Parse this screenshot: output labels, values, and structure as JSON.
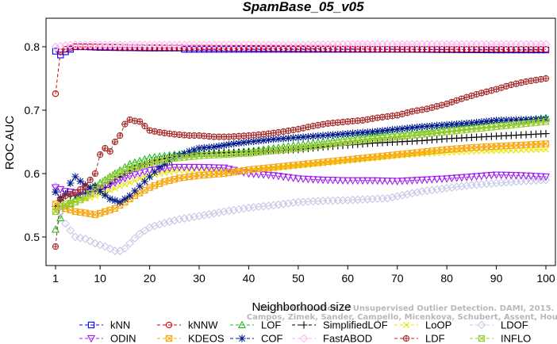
{
  "chart_data": {
    "type": "line",
    "title": "SpamBase_05_v05",
    "xlabel": "Neighborhood size",
    "ylabel": "ROC AUC",
    "xlim": [
      1,
      100
    ],
    "ylim": [
      0.455,
      0.845
    ],
    "x_ticks": [
      1,
      10,
      20,
      30,
      40,
      50,
      60,
      70,
      80,
      90,
      100
    ],
    "y_ticks": [
      0.5,
      0.6,
      0.7,
      0.8
    ],
    "grid": false,
    "legend_position": "bottom",
    "watermark": [
      "Campos, Zimek, Sander, Campello, Micenkova, Schubert, Assent, Houle",
      "On the Evaluation of Unsupervised Outlier Detection. DAMI, 2015."
    ],
    "series": [
      {
        "name": "kNN",
        "color": "#0000ff",
        "marker": "square",
        "dash": "4,3",
        "points": [
          [
            1,
            0.793
          ],
          [
            2,
            0.787
          ],
          [
            3,
            0.792
          ],
          [
            4,
            0.796
          ],
          [
            5,
            0.8
          ],
          [
            7,
            0.8
          ],
          [
            10,
            0.799
          ],
          [
            20,
            0.798
          ],
          [
            26,
            0.798
          ],
          [
            27,
            0.796
          ],
          [
            35,
            0.796
          ],
          [
            50,
            0.796
          ],
          [
            70,
            0.796
          ],
          [
            90,
            0.795
          ],
          [
            100,
            0.795
          ]
        ]
      },
      {
        "name": "kNNW",
        "color": "#d40000",
        "marker": "circle",
        "dash": "4,3",
        "points": [
          [
            1,
            0.726
          ],
          [
            2,
            0.792
          ],
          [
            3,
            0.796
          ],
          [
            5,
            0.8
          ],
          [
            8,
            0.8
          ],
          [
            15,
            0.799
          ],
          [
            30,
            0.798
          ],
          [
            50,
            0.797
          ],
          [
            70,
            0.796
          ],
          [
            90,
            0.796
          ],
          [
            100,
            0.796
          ]
        ]
      },
      {
        "name": "LOF",
        "color": "#1fbf1f",
        "marker": "triangle-up",
        "dash": "4,3",
        "points": [
          [
            1,
            0.512
          ],
          [
            2,
            0.53
          ],
          [
            3,
            0.545
          ],
          [
            5,
            0.56
          ],
          [
            7,
            0.572
          ],
          [
            10,
            0.585
          ],
          [
            13,
            0.6
          ],
          [
            16,
            0.615
          ],
          [
            20,
            0.625
          ],
          [
            25,
            0.63
          ],
          [
            30,
            0.632
          ],
          [
            35,
            0.632
          ],
          [
            40,
            0.635
          ],
          [
            45,
            0.64
          ],
          [
            50,
            0.645
          ],
          [
            55,
            0.65
          ],
          [
            60,
            0.655
          ],
          [
            65,
            0.66
          ],
          [
            70,
            0.662
          ],
          [
            75,
            0.665
          ],
          [
            80,
            0.67
          ],
          [
            85,
            0.675
          ],
          [
            90,
            0.679
          ],
          [
            95,
            0.683
          ],
          [
            100,
            0.688
          ]
        ]
      },
      {
        "name": "SimplifiedLOF",
        "color": "#000000",
        "marker": "plus",
        "dash": "4,3",
        "points": [
          [
            1,
            0.548
          ],
          [
            2,
            0.558
          ],
          [
            3,
            0.565
          ],
          [
            5,
            0.565
          ],
          [
            7,
            0.57
          ],
          [
            9,
            0.573
          ],
          [
            11,
            0.578
          ],
          [
            13,
            0.59
          ],
          [
            15,
            0.6
          ],
          [
            18,
            0.612
          ],
          [
            21,
            0.62
          ],
          [
            25,
            0.628
          ],
          [
            30,
            0.632
          ],
          [
            35,
            0.633
          ],
          [
            40,
            0.634
          ],
          [
            45,
            0.636
          ],
          [
            50,
            0.638
          ],
          [
            55,
            0.642
          ],
          [
            60,
            0.645
          ],
          [
            65,
            0.648
          ],
          [
            70,
            0.65
          ],
          [
            75,
            0.652
          ],
          [
            80,
            0.655
          ],
          [
            85,
            0.657
          ],
          [
            90,
            0.659
          ],
          [
            95,
            0.661
          ],
          [
            100,
            0.663
          ]
        ]
      },
      {
        "name": "LoOP",
        "color": "#e6e600",
        "marker": "x",
        "dash": "4,3",
        "points": [
          [
            1,
            0.542
          ],
          [
            3,
            0.552
          ],
          [
            5,
            0.556
          ],
          [
            8,
            0.562
          ],
          [
            11,
            0.57
          ],
          [
            14,
            0.58
          ],
          [
            18,
            0.592
          ],
          [
            22,
            0.6
          ],
          [
            26,
            0.605
          ],
          [
            30,
            0.605
          ],
          [
            35,
            0.604
          ],
          [
            40,
            0.605
          ],
          [
            45,
            0.608
          ],
          [
            50,
            0.612
          ],
          [
            55,
            0.616
          ],
          [
            60,
            0.62
          ],
          [
            65,
            0.624
          ],
          [
            70,
            0.628
          ],
          [
            75,
            0.631
          ],
          [
            80,
            0.633
          ],
          [
            85,
            0.635
          ],
          [
            90,
            0.636
          ],
          [
            95,
            0.637
          ],
          [
            100,
            0.638
          ]
        ]
      },
      {
        "name": "LDOF",
        "color": "#c8c8e8",
        "marker": "diamond",
        "dash": "4,3",
        "points": [
          [
            1,
            0.58
          ],
          [
            2,
            0.54
          ],
          [
            3,
            0.521
          ],
          [
            5,
            0.5
          ],
          [
            7,
            0.497
          ],
          [
            9,
            0.49
          ],
          [
            11,
            0.485
          ],
          [
            13,
            0.478
          ],
          [
            14,
            0.478
          ],
          [
            15,
            0.482
          ],
          [
            16,
            0.49
          ],
          [
            17,
            0.498
          ],
          [
            18,
            0.505
          ],
          [
            20,
            0.515
          ],
          [
            23,
            0.522
          ],
          [
            26,
            0.528
          ],
          [
            30,
            0.533
          ],
          [
            35,
            0.54
          ],
          [
            40,
            0.546
          ],
          [
            45,
            0.55
          ],
          [
            50,
            0.555
          ],
          [
            55,
            0.557
          ],
          [
            60,
            0.558
          ],
          [
            65,
            0.56
          ],
          [
            68,
            0.561
          ],
          [
            75,
            0.572
          ],
          [
            80,
            0.577
          ],
          [
            85,
            0.582
          ],
          [
            90,
            0.585
          ],
          [
            95,
            0.588
          ],
          [
            100,
            0.59
          ]
        ]
      },
      {
        "name": "ODIN",
        "color": "#a020f0",
        "marker": "triangle-down",
        "dash": "4,3",
        "points": [
          [
            1,
            0.578
          ],
          [
            3,
            0.572
          ],
          [
            5,
            0.57
          ],
          [
            8,
            0.571
          ],
          [
            12,
            0.582
          ],
          [
            16,
            0.596
          ],
          [
            20,
            0.605
          ],
          [
            25,
            0.61
          ],
          [
            30,
            0.61
          ],
          [
            35,
            0.609
          ],
          [
            40,
            0.6
          ],
          [
            45,
            0.597
          ],
          [
            50,
            0.592
          ],
          [
            55,
            0.59
          ],
          [
            60,
            0.589
          ],
          [
            65,
            0.589
          ],
          [
            70,
            0.588
          ],
          [
            75,
            0.59
          ],
          [
            80,
            0.592
          ],
          [
            85,
            0.595
          ],
          [
            90,
            0.598
          ],
          [
            95,
            0.597
          ],
          [
            100,
            0.595
          ]
        ]
      },
      {
        "name": "KDEOS",
        "color": "#f7a60f",
        "marker": "square-x",
        "dash": "4,3",
        "points": [
          [
            1,
            0.552
          ],
          [
            3,
            0.545
          ],
          [
            5,
            0.54
          ],
          [
            7,
            0.538
          ],
          [
            9,
            0.535
          ],
          [
            11,
            0.54
          ],
          [
            13,
            0.545
          ],
          [
            15,
            0.555
          ],
          [
            17,
            0.565
          ],
          [
            20,
            0.578
          ],
          [
            23,
            0.587
          ],
          [
            26,
            0.593
          ],
          [
            30,
            0.597
          ],
          [
            35,
            0.6
          ],
          [
            40,
            0.606
          ],
          [
            45,
            0.61
          ],
          [
            50,
            0.614
          ],
          [
            55,
            0.618
          ],
          [
            60,
            0.622
          ],
          [
            65,
            0.626
          ],
          [
            70,
            0.63
          ],
          [
            75,
            0.634
          ],
          [
            80,
            0.638
          ],
          [
            85,
            0.641
          ],
          [
            90,
            0.643
          ],
          [
            95,
            0.645
          ],
          [
            100,
            0.647
          ]
        ]
      },
      {
        "name": "COF",
        "color": "#001a8c",
        "marker": "star",
        "dash": "4,3",
        "points": [
          [
            1,
            0.571
          ],
          [
            2,
            0.562
          ],
          [
            3,
            0.568
          ],
          [
            4,
            0.585
          ],
          [
            5,
            0.595
          ],
          [
            6,
            0.588
          ],
          [
            7,
            0.582
          ],
          [
            8,
            0.578
          ],
          [
            9,
            0.58
          ],
          [
            10,
            0.572
          ],
          [
            12,
            0.56
          ],
          [
            14,
            0.555
          ],
          [
            16,
            0.565
          ],
          [
            18,
            0.58
          ],
          [
            20,
            0.595
          ],
          [
            22,
            0.61
          ],
          [
            25,
            0.625
          ],
          [
            28,
            0.635
          ],
          [
            30,
            0.64
          ],
          [
            33,
            0.642
          ],
          [
            36,
            0.646
          ],
          [
            40,
            0.65
          ],
          [
            45,
            0.654
          ],
          [
            50,
            0.657
          ],
          [
            55,
            0.66
          ],
          [
            60,
            0.663
          ],
          [
            65,
            0.666
          ],
          [
            70,
            0.67
          ],
          [
            75,
            0.674
          ],
          [
            80,
            0.677
          ],
          [
            85,
            0.68
          ],
          [
            90,
            0.684
          ],
          [
            95,
            0.685
          ],
          [
            100,
            0.686
          ]
        ]
      },
      {
        "name": "FastABOD",
        "color": "#ffb6f0",
        "marker": "diamond",
        "dash": "4,3",
        "points": [
          [
            1,
            0.8
          ],
          [
            3,
            0.802
          ],
          [
            5,
            0.803
          ],
          [
            10,
            0.803
          ],
          [
            20,
            0.803
          ],
          [
            30,
            0.803
          ],
          [
            40,
            0.803
          ],
          [
            50,
            0.803
          ],
          [
            60,
            0.804
          ],
          [
            70,
            0.804
          ],
          [
            80,
            0.804
          ],
          [
            90,
            0.804
          ],
          [
            100,
            0.804
          ]
        ]
      },
      {
        "name": "LDF",
        "color": "#a52a2a",
        "marker": "circle-plus",
        "dash": "4,3",
        "points": [
          [
            1,
            0.485
          ],
          [
            2,
            0.56
          ],
          [
            3,
            0.565
          ],
          [
            5,
            0.57
          ],
          [
            7,
            0.58
          ],
          [
            9,
            0.6
          ],
          [
            10,
            0.63
          ],
          [
            11,
            0.64
          ],
          [
            12,
            0.635
          ],
          [
            13,
            0.65
          ],
          [
            14,
            0.66
          ],
          [
            15,
            0.678
          ],
          [
            16,
            0.685
          ],
          [
            17,
            0.683
          ],
          [
            18,
            0.682
          ],
          [
            19,
            0.675
          ],
          [
            20,
            0.668
          ],
          [
            22,
            0.665
          ],
          [
            25,
            0.662
          ],
          [
            28,
            0.66
          ],
          [
            30,
            0.66
          ],
          [
            33,
            0.658
          ],
          [
            36,
            0.658
          ],
          [
            40,
            0.66
          ],
          [
            43,
            0.662
          ],
          [
            46,
            0.665
          ],
          [
            50,
            0.67
          ],
          [
            53,
            0.675
          ],
          [
            56,
            0.679
          ],
          [
            60,
            0.682
          ],
          [
            63,
            0.684
          ],
          [
            66,
            0.688
          ],
          [
            70,
            0.692
          ],
          [
            73,
            0.698
          ],
          [
            76,
            0.702
          ],
          [
            80,
            0.71
          ],
          [
            83,
            0.718
          ],
          [
            86,
            0.725
          ],
          [
            90,
            0.733
          ],
          [
            93,
            0.74
          ],
          [
            96,
            0.745
          ],
          [
            100,
            0.75
          ]
        ]
      },
      {
        "name": "INFLO",
        "color": "#99cc33",
        "marker": "square-x",
        "dash": "4,3",
        "points": [
          [
            1,
            0.54
          ],
          [
            2,
            0.548
          ],
          [
            3,
            0.552
          ],
          [
            5,
            0.555
          ],
          [
            7,
            0.562
          ],
          [
            9,
            0.575
          ],
          [
            11,
            0.588
          ],
          [
            13,
            0.598
          ],
          [
            15,
            0.605
          ],
          [
            18,
            0.612
          ],
          [
            21,
            0.618
          ],
          [
            25,
            0.624
          ],
          [
            30,
            0.628
          ],
          [
            35,
            0.63
          ],
          [
            40,
            0.632
          ],
          [
            45,
            0.636
          ],
          [
            50,
            0.64
          ],
          [
            55,
            0.645
          ],
          [
            60,
            0.65
          ],
          [
            65,
            0.654
          ],
          [
            70,
            0.658
          ],
          [
            75,
            0.662
          ],
          [
            80,
            0.666
          ],
          [
            85,
            0.67
          ],
          [
            90,
            0.674
          ],
          [
            95,
            0.678
          ],
          [
            100,
            0.682
          ]
        ]
      }
    ]
  }
}
